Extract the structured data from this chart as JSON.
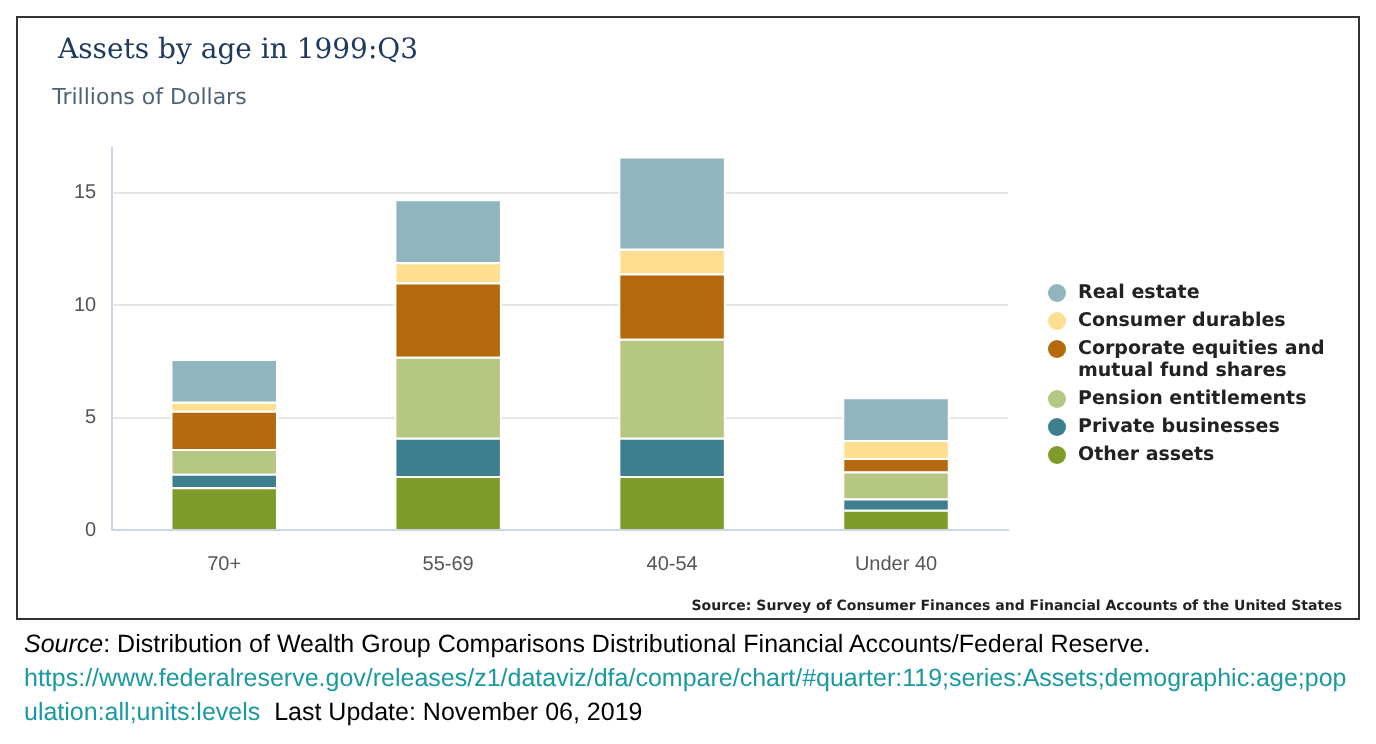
{
  "chart_data": {
    "type": "bar",
    "title": "Assets by age in 1999:Q3",
    "ylabel": "Trillions of Dollars",
    "categories": [
      "70+",
      "55-69",
      "40-54",
      "Under 40"
    ],
    "stacked": true,
    "series": [
      {
        "name": "Other assets",
        "color": "#7f9c2a",
        "values": [
          1.9,
          2.4,
          2.4,
          0.9
        ]
      },
      {
        "name": "Private businesses",
        "color": "#3e7f8f",
        "values": [
          0.6,
          1.7,
          1.7,
          0.5
        ]
      },
      {
        "name": "Pension entitlements",
        "color": "#b6c683",
        "values": [
          1.1,
          3.6,
          4.4,
          1.2
        ]
      },
      {
        "name": "Corporate equities and mutual fund shares",
        "color": "#b5690d",
        "values": [
          1.7,
          3.3,
          2.9,
          0.6
        ]
      },
      {
        "name": "Consumer durables",
        "color": "#fedf90",
        "values": [
          0.4,
          0.9,
          1.1,
          0.8
        ]
      },
      {
        "name": "Real estate",
        "color": "#91b5bf",
        "values": [
          1.9,
          2.8,
          4.1,
          1.9
        ]
      }
    ],
    "ylim": [
      0,
      17
    ],
    "yticks": [
      0,
      5,
      10,
      15
    ],
    "grid": "y",
    "legend": "right",
    "annotations": [
      "Source: Survey of Consumer Finances and Financial Accounts of the United States",
      "Source: Distribution of Wealth Group Comparisons Distributional Financial Accounts/Federal Reserve.",
      "https://www.federalreserve.gov/releases/z1/dataviz/dfa/compare/chart/#quarter:119;series:Assets;demographic:age;population:all;units:levels",
      "Last Update: November 06, 2019"
    ]
  }
}
